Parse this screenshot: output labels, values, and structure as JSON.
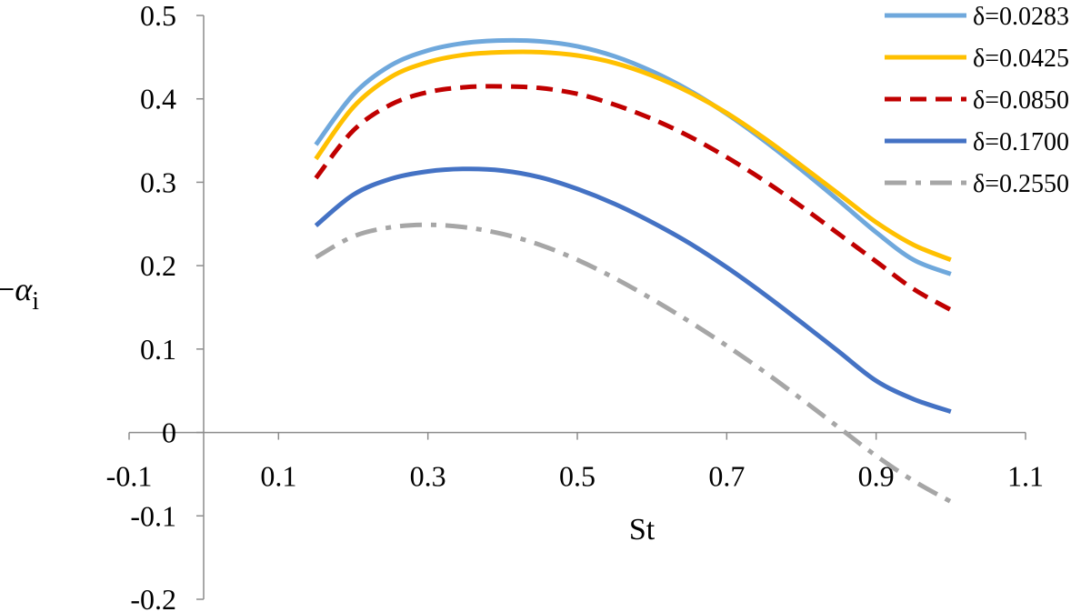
{
  "chart_data": {
    "type": "line",
    "title": "",
    "xlabel": "St",
    "ylabel": {
      "prefix": "−",
      "symbol": "α",
      "subscript": "i"
    },
    "xlim": [
      -0.1,
      1.1
    ],
    "ylim": [
      -0.2,
      0.5
    ],
    "x_ticks": [
      -0.1,
      0.1,
      0.3,
      0.5,
      0.7,
      0.9,
      1.1
    ],
    "x_tick_labels": [
      "-0.1",
      "0.1",
      "0.3",
      "0.5",
      "0.7",
      "0.9",
      "1.1"
    ],
    "y_ticks": [
      -0.2,
      -0.1,
      0,
      0.1,
      0.2,
      0.3,
      0.4,
      0.5
    ],
    "y_tick_labels": [
      "-0.2",
      "-0.1",
      "0",
      "0.1",
      "0.2",
      "0.3",
      "0.4",
      "0.5"
    ],
    "grid": false,
    "legend_position": "top-right",
    "series": [
      {
        "name": "δ=0.0283",
        "color": "#6FA8DC",
        "dash": "solid",
        "x": [
          0.15,
          0.2,
          0.25,
          0.3,
          0.35,
          0.4,
          0.45,
          0.5,
          0.55,
          0.6,
          0.65,
          0.7,
          0.75,
          0.8,
          0.85,
          0.9,
          0.95,
          1.0
        ],
        "y": [
          0.345,
          0.405,
          0.44,
          0.458,
          0.467,
          0.47,
          0.469,
          0.463,
          0.451,
          0.433,
          0.41,
          0.382,
          0.35,
          0.315,
          0.278,
          0.24,
          0.207,
          0.19
        ]
      },
      {
        "name": "δ=0.0425",
        "color": "#FFC000",
        "dash": "solid",
        "x": [
          0.15,
          0.2,
          0.25,
          0.3,
          0.35,
          0.4,
          0.45,
          0.5,
          0.55,
          0.6,
          0.65,
          0.7,
          0.75,
          0.8,
          0.85,
          0.9,
          0.95,
          1.0
        ],
        "y": [
          0.328,
          0.39,
          0.426,
          0.444,
          0.453,
          0.456,
          0.456,
          0.452,
          0.443,
          0.428,
          0.408,
          0.383,
          0.353,
          0.32,
          0.286,
          0.252,
          0.225,
          0.207
        ]
      },
      {
        "name": "δ=0.0850",
        "color": "#C00000",
        "dash": "dashed",
        "x": [
          0.15,
          0.2,
          0.25,
          0.3,
          0.35,
          0.4,
          0.45,
          0.5,
          0.55,
          0.6,
          0.65,
          0.7,
          0.75,
          0.8,
          0.85,
          0.9,
          0.95,
          1.0
        ],
        "y": [
          0.305,
          0.362,
          0.393,
          0.408,
          0.414,
          0.415,
          0.413,
          0.406,
          0.393,
          0.376,
          0.355,
          0.33,
          0.302,
          0.271,
          0.238,
          0.205,
          0.172,
          0.147
        ]
      },
      {
        "name": "δ=0.1700",
        "color": "#4472C4",
        "dash": "solid",
        "x": [
          0.15,
          0.2,
          0.25,
          0.3,
          0.35,
          0.4,
          0.45,
          0.5,
          0.55,
          0.6,
          0.65,
          0.7,
          0.75,
          0.8,
          0.85,
          0.9,
          0.95,
          1.0
        ],
        "y": [
          0.248,
          0.285,
          0.304,
          0.313,
          0.316,
          0.314,
          0.306,
          0.292,
          0.274,
          0.252,
          0.227,
          0.198,
          0.166,
          0.132,
          0.097,
          0.062,
          0.04,
          0.025
        ]
      },
      {
        "name": "δ=0.2550",
        "color": "#A6A6A6",
        "dash": "dashdot",
        "x": [
          0.15,
          0.2,
          0.25,
          0.3,
          0.35,
          0.4,
          0.45,
          0.5,
          0.55,
          0.6,
          0.65,
          0.7,
          0.75,
          0.8,
          0.85,
          0.9,
          0.95,
          1.0
        ],
        "y": [
          0.21,
          0.235,
          0.246,
          0.249,
          0.246,
          0.238,
          0.225,
          0.207,
          0.185,
          0.16,
          0.133,
          0.104,
          0.073,
          0.04,
          0.006,
          -0.028,
          -0.058,
          -0.083
        ]
      }
    ]
  }
}
